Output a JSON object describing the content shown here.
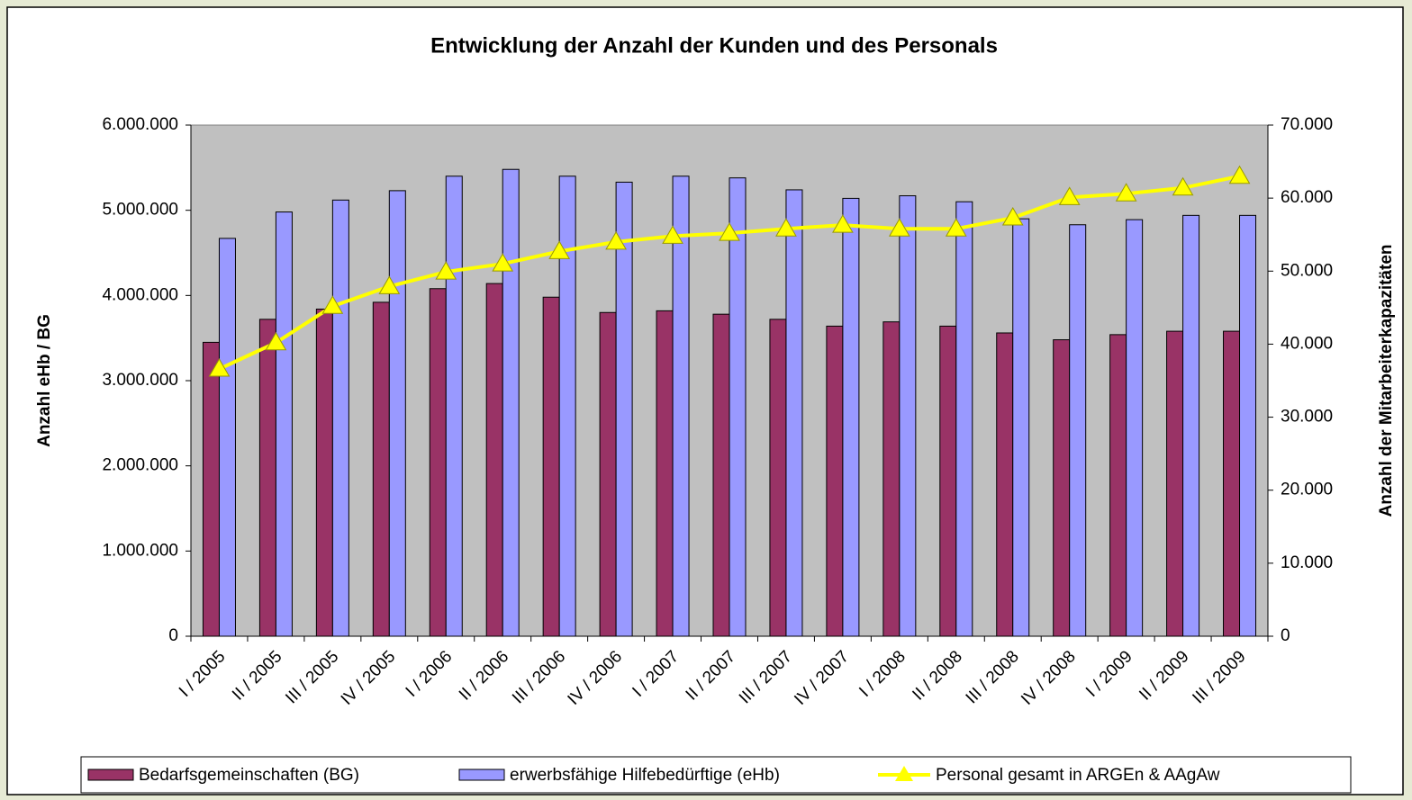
{
  "chart_data": {
    "type": "bar",
    "title": "Entwicklung der Anzahl der Kunden und des Personals",
    "y_label": "Anzahl eHb / BG",
    "y2_label": "Anzahl der Mitarbeiterkapazitäten",
    "categories": [
      "I / 2005",
      "II / 2005",
      "III / 2005",
      "IV / 2005",
      "I / 2006",
      "II / 2006",
      "III / 2006",
      "IV / 2006",
      "I / 2007",
      "II / 2007",
      "III / 2007",
      "IV / 2007",
      "I / 2008",
      "II / 2008",
      "III / 2008",
      "IV / 2008",
      "I / 2009",
      "II / 2009",
      "III / 2009"
    ],
    "series": [
      {
        "name": "Bedarfsgemeinschaften (BG)",
        "color": "#993366",
        "type": "bar",
        "values": [
          3450000,
          3720000,
          3840000,
          3920000,
          4080000,
          4140000,
          3980000,
          3800000,
          3820000,
          3780000,
          3720000,
          3640000,
          3690000,
          3640000,
          3560000,
          3480000,
          3540000,
          3580000,
          3580000
        ]
      },
      {
        "name": "erwerbsfähige Hilfebedürftige (eHb)",
        "color": "#9999ff",
        "type": "bar",
        "values": [
          4670000,
          4980000,
          5120000,
          5230000,
          5400000,
          5480000,
          5400000,
          5330000,
          5400000,
          5380000,
          5240000,
          5140000,
          5170000,
          5100000,
          4900000,
          4830000,
          4890000,
          4940000,
          4940000
        ]
      },
      {
        "name": "Personal gesamt in ARGEn & AAgAw",
        "color": "#ffff00",
        "type": "line",
        "axis": "y2",
        "values": [
          36600,
          40200,
          45200,
          47900,
          49900,
          51000,
          52700,
          54000,
          54800,
          55200,
          55800,
          56300,
          55800,
          55800,
          57300,
          60100,
          60600,
          61400,
          63000
        ]
      }
    ],
    "ylim": [
      0,
      6000000
    ],
    "yticks": [
      0,
      {
        "value": 1000000,
        "label": "1.000.000"
      },
      {
        "value": 2000000,
        "label": "2.000.000"
      },
      {
        "value": 3000000,
        "label": "3.000.000"
      },
      {
        "value": 4000000,
        "label": "4.000.000"
      },
      {
        "value": 5000000,
        "label": "5.000.000"
      },
      {
        "value": 6000000,
        "label": "6.000.000"
      }
    ],
    "y2lim": [
      0,
      70000
    ],
    "y2ticks": [
      0,
      {
        "value": 10000,
        "label": "10.000"
      },
      {
        "value": 20000,
        "label": "20.000"
      },
      {
        "value": 30000,
        "label": "30.000"
      },
      {
        "value": 40000,
        "label": "40.000"
      },
      {
        "value": 50000,
        "label": "50.000"
      },
      {
        "value": 60000,
        "label": "60.000"
      },
      {
        "value": 70000,
        "label": "70.000"
      }
    ],
    "legend": "bottom"
  }
}
